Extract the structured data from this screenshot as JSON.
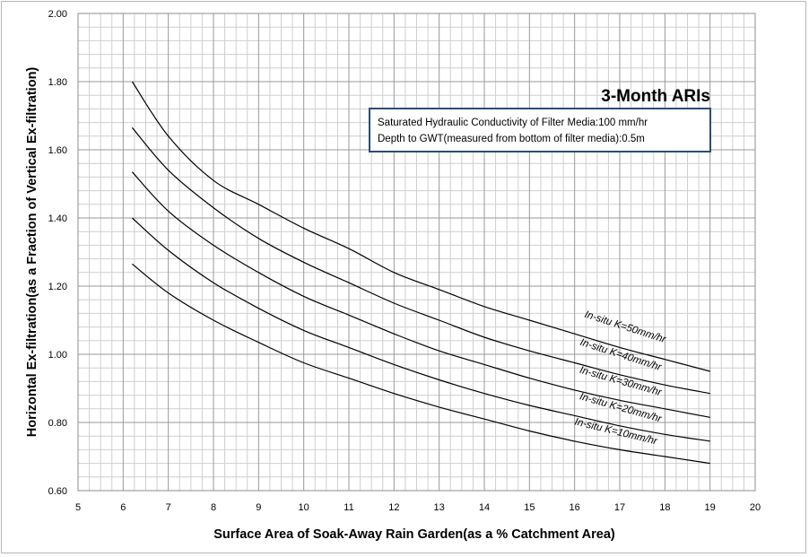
{
  "chart_data": {
    "type": "line",
    "title": "",
    "heading": "3-Month ARIs",
    "note_lines": [
      "Saturated Hydraulic Conductivity of Filter Media:100 mm/hr",
      "Depth to GWT(measured from bottom of filter media):0.5m"
    ],
    "xlabel": "Surface Area of Soak-Away Rain Garden(as a %  Catchment Area)",
    "ylabel": "Horizontal Ex-filtration(as a Fraction of Vertical Ex-filtration)",
    "xlim": [
      5,
      20
    ],
    "ylim": [
      0.6,
      2.0
    ],
    "x_ticks": [
      "5",
      "6",
      "7",
      "8",
      "9",
      "10",
      "11",
      "12",
      "13",
      "14",
      "15",
      "16",
      "17",
      "18",
      "19",
      "20"
    ],
    "y_ticks": [
      "0.60",
      "0.80",
      "1.00",
      "1.20",
      "1.40",
      "1.60",
      "1.80",
      "2.00"
    ],
    "grid": true,
    "legend": "none",
    "x": [
      6.2,
      7,
      8,
      9,
      10,
      11,
      12,
      13,
      14,
      15,
      16,
      17,
      18,
      19
    ],
    "series": [
      {
        "name": "In-situ K=50mm/hr",
        "values": [
          1.8,
          1.64,
          1.51,
          1.44,
          1.37,
          1.31,
          1.24,
          1.19,
          1.14,
          1.1,
          1.06,
          1.02,
          0.985,
          0.95
        ]
      },
      {
        "name": "In-situ K=40mm/hr",
        "values": [
          1.665,
          1.54,
          1.43,
          1.34,
          1.27,
          1.21,
          1.15,
          1.1,
          1.05,
          1.01,
          0.975,
          0.94,
          0.91,
          0.885
        ]
      },
      {
        "name": "In-situ K=30mm/hr",
        "values": [
          1.535,
          1.42,
          1.32,
          1.24,
          1.17,
          1.115,
          1.06,
          1.01,
          0.97,
          0.93,
          0.895,
          0.865,
          0.84,
          0.815
        ]
      },
      {
        "name": "In-situ K=20mm/hr",
        "values": [
          1.4,
          1.305,
          1.21,
          1.135,
          1.07,
          1.02,
          0.97,
          0.925,
          0.885,
          0.85,
          0.82,
          0.79,
          0.765,
          0.745
        ]
      },
      {
        "name": "In-situ K=10mm/hr",
        "values": [
          1.265,
          1.18,
          1.1,
          1.035,
          0.975,
          0.93,
          0.885,
          0.845,
          0.81,
          0.775,
          0.745,
          0.72,
          0.7,
          0.68
        ]
      }
    ]
  }
}
